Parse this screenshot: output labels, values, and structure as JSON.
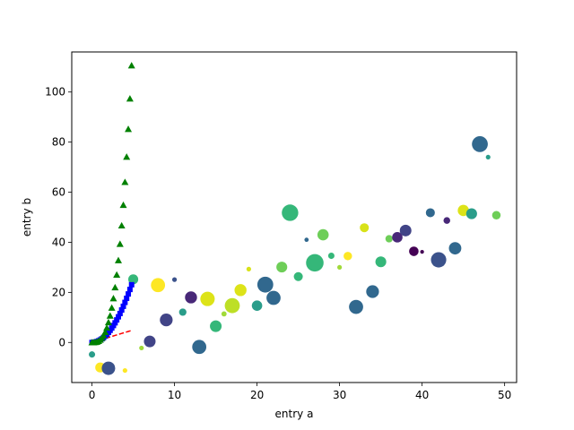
{
  "chart_data": {
    "type": "scatter",
    "xlabel": "entry a",
    "ylabel": "entry b",
    "xlim": [
      -2.45,
      51.45
    ],
    "ylim": [
      -16.0,
      116.0
    ],
    "xticks": [
      0,
      10,
      20,
      30,
      40,
      50
    ],
    "yticks": [
      0,
      20,
      40,
      60,
      80,
      100
    ],
    "grid": false,
    "legend": "none",
    "series": [
      {
        "marker": "scatter-circle",
        "points": [
          {
            "x": 0,
            "y": -4.8,
            "size": 22,
            "color": "#2a9d8a"
          },
          {
            "x": 1,
            "y": -10.0,
            "size": 55,
            "color": "#fde725"
          },
          {
            "x": 2,
            "y": -10.3,
            "size": 100,
            "color": "#3b528b"
          },
          {
            "x": 4,
            "y": -11.2,
            "size": 12,
            "color": "#fde725"
          },
          {
            "x": 5,
            "y": 25.2,
            "size": 55,
            "color": "#35b779"
          },
          {
            "x": 6,
            "y": -2.2,
            "size": 12,
            "color": "#a0da39"
          },
          {
            "x": 7,
            "y": 0.4,
            "size": 75,
            "color": "#414487"
          },
          {
            "x": 8,
            "y": 22.9,
            "size": 110,
            "color": "#fde725"
          },
          {
            "x": 9,
            "y": 9.0,
            "size": 90,
            "color": "#414487"
          },
          {
            "x": 10,
            "y": 25.1,
            "size": 12,
            "color": "#3b528b"
          },
          {
            "x": 11,
            "y": 12.1,
            "size": 30,
            "color": "#2a9d8a"
          },
          {
            "x": 12,
            "y": 18.0,
            "size": 80,
            "color": "#482878"
          },
          {
            "x": 13,
            "y": -1.8,
            "size": 110,
            "color": "#31688e"
          },
          {
            "x": 14,
            "y": 17.4,
            "size": 115,
            "color": "#dde318"
          },
          {
            "x": 15,
            "y": 6.5,
            "size": 75,
            "color": "#35b779"
          },
          {
            "x": 16,
            "y": 11.4,
            "size": 15,
            "color": "#a0da39"
          },
          {
            "x": 17,
            "y": 14.7,
            "size": 125,
            "color": "#bddf26"
          },
          {
            "x": 18,
            "y": 20.9,
            "size": 80,
            "color": "#dde318"
          },
          {
            "x": 19,
            "y": 29.3,
            "size": 12,
            "color": "#d8e219"
          },
          {
            "x": 20,
            "y": 14.7,
            "size": 60,
            "color": "#2a9d8a"
          },
          {
            "x": 21,
            "y": 23.1,
            "size": 140,
            "color": "#31688e"
          },
          {
            "x": 22,
            "y": 17.8,
            "size": 110,
            "color": "#31688e"
          },
          {
            "x": 23,
            "y": 30.1,
            "size": 65,
            "color": "#6ece58"
          },
          {
            "x": 24,
            "y": 51.8,
            "size": 150,
            "color": "#35b779"
          },
          {
            "x": 25,
            "y": 26.3,
            "size": 45,
            "color": "#35b779"
          },
          {
            "x": 26,
            "y": 41.0,
            "size": 10,
            "color": "#31688e"
          },
          {
            "x": 27,
            "y": 31.8,
            "size": 170,
            "color": "#35b779"
          },
          {
            "x": 28,
            "y": 43.0,
            "size": 70,
            "color": "#6ece58"
          },
          {
            "x": 29,
            "y": 34.6,
            "size": 22,
            "color": "#35b779"
          },
          {
            "x": 30,
            "y": 30.0,
            "size": 12,
            "color": "#a0da39"
          },
          {
            "x": 31,
            "y": 34.5,
            "size": 40,
            "color": "#fde725"
          },
          {
            "x": 32,
            "y": 14.2,
            "size": 110,
            "color": "#31688e"
          },
          {
            "x": 33,
            "y": 45.8,
            "size": 45,
            "color": "#d8e219"
          },
          {
            "x": 34,
            "y": 20.3,
            "size": 90,
            "color": "#31688e"
          },
          {
            "x": 35,
            "y": 32.2,
            "size": 65,
            "color": "#35b779"
          },
          {
            "x": 36,
            "y": 41.4,
            "size": 30,
            "color": "#6ece58"
          },
          {
            "x": 37,
            "y": 42.0,
            "size": 60,
            "color": "#482878"
          },
          {
            "x": 38,
            "y": 44.7,
            "size": 75,
            "color": "#414487"
          },
          {
            "x": 39,
            "y": 36.4,
            "size": 50,
            "color": "#440154"
          },
          {
            "x": 40,
            "y": 36.2,
            "size": 8,
            "color": "#440154"
          },
          {
            "x": 41,
            "y": 51.8,
            "size": 45,
            "color": "#31688e"
          },
          {
            "x": 42,
            "y": 33.0,
            "size": 130,
            "color": "#3b528b"
          },
          {
            "x": 43,
            "y": 48.7,
            "size": 25,
            "color": "#482878"
          },
          {
            "x": 44,
            "y": 37.6,
            "size": 85,
            "color": "#31688e"
          },
          {
            "x": 45,
            "y": 52.7,
            "size": 70,
            "color": "#dde318"
          },
          {
            "x": 46,
            "y": 51.4,
            "size": 65,
            "color": "#2a9d8a"
          },
          {
            "x": 47,
            "y": 79.2,
            "size": 140,
            "color": "#31688e"
          },
          {
            "x": 48,
            "y": 74.0,
            "size": 12,
            "color": "#2a9d8a"
          },
          {
            "x": 49,
            "y": 50.8,
            "size": 40,
            "color": "#6ece58"
          }
        ]
      },
      {
        "marker": "red-dashes",
        "color": "#ff0000",
        "x": [
          0,
          0.2,
          0.4,
          0.6,
          0.8,
          1.0,
          1.2,
          1.4,
          1.6,
          1.8,
          2.0,
          2.2,
          2.4,
          2.6,
          2.8,
          3.0,
          3.2,
          3.4,
          3.6,
          3.8,
          4.0,
          4.2,
          4.4,
          4.6,
          4.8
        ],
        "y": [
          0,
          0.2,
          0.4,
          0.6,
          0.8,
          1.0,
          1.2,
          1.4,
          1.6,
          1.8,
          2.0,
          2.2,
          2.4,
          2.6,
          2.8,
          3.0,
          3.2,
          3.4,
          3.6,
          3.8,
          4.0,
          4.2,
          4.4,
          4.6,
          4.8
        ]
      },
      {
        "marker": "blue-squares",
        "color": "#0000ff",
        "x": [
          0,
          0.2,
          0.4,
          0.6,
          0.8,
          1.0,
          1.2,
          1.4,
          1.6,
          1.8,
          2.0,
          2.2,
          2.4,
          2.6,
          2.8,
          3.0,
          3.2,
          3.4,
          3.6,
          3.8,
          4.0,
          4.2,
          4.4,
          4.6,
          4.8
        ],
        "y": [
          0,
          0.04,
          0.16,
          0.36,
          0.64,
          1.0,
          1.44,
          1.96,
          2.56,
          3.24,
          4.0,
          4.84,
          5.76,
          6.76,
          7.84,
          9.0,
          10.24,
          11.56,
          12.96,
          14.44,
          16.0,
          17.64,
          19.36,
          21.16,
          23.04
        ]
      },
      {
        "marker": "green-triangles",
        "color": "#008000",
        "x": [
          0,
          0.2,
          0.4,
          0.6,
          0.8,
          1.0,
          1.2,
          1.4,
          1.6,
          1.8,
          2.0,
          2.2,
          2.4,
          2.6,
          2.8,
          3.0,
          3.2,
          3.4,
          3.6,
          3.8,
          4.0,
          4.2,
          4.4,
          4.6,
          4.8
        ],
        "y": [
          0,
          0.008,
          0.064,
          0.216,
          0.512,
          1.0,
          1.728,
          2.744,
          4.096,
          5.832,
          8.0,
          10.648,
          13.824,
          17.576,
          21.952,
          27.0,
          32.768,
          39.304,
          46.656,
          54.872,
          64.0,
          74.088,
          85.184,
          97.336,
          110.592
        ]
      }
    ]
  }
}
